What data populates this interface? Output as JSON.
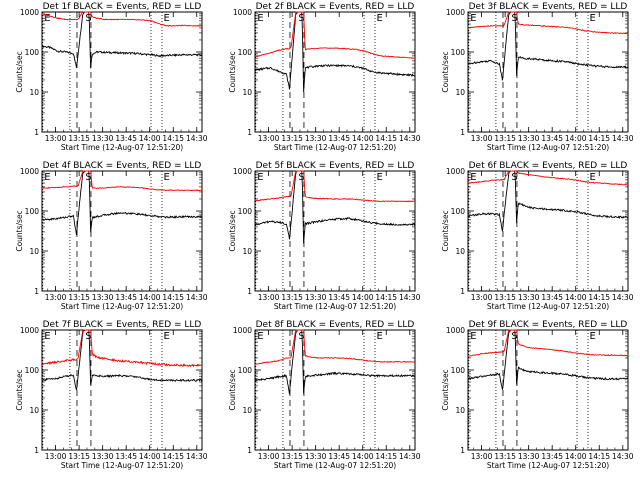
{
  "chart_data": {
    "type": "line",
    "yscale": "log",
    "ylim": [
      1,
      1000
    ],
    "ylabel": "Counts/sec",
    "xlabel": "Start Time (12-Aug-07 12:51:20)",
    "x_tick_labels": [
      "13:00",
      "13:15",
      "13:30",
      "13:45",
      "14:00",
      "14:15",
      "14:30"
    ],
    "y_tick_labels": [
      "1",
      "10",
      "100",
      "1000"
    ],
    "x_unit": "minutes after 12:51:20",
    "xlim": [
      0,
      102
    ],
    "x_ticks": [
      8.67,
      23.67,
      38.67,
      53.67,
      68.67,
      83.67,
      98.67
    ],
    "series_colors": {
      "events": "#000000",
      "lld": "#ff0000"
    },
    "markers": [
      {
        "label": "E",
        "x": 0.5,
        "style": "dotted"
      },
      {
        "label": "",
        "x": 17.8,
        "style": "dotted"
      },
      {
        "label": "",
        "x": 22.3,
        "style": "dashed"
      },
      {
        "label": "S",
        "x": 26.7,
        "style": "solid"
      },
      {
        "label": "",
        "x": 31.2,
        "style": "dashed"
      },
      {
        "label": "",
        "x": 69.5,
        "style": "dotted"
      },
      {
        "label": "E",
        "x": 76.5,
        "style": "dotted"
      }
    ],
    "panels": [
      {
        "title": "Det 1f BLACK = Events, RED = LLD",
        "series": [
          {
            "name": "Events",
            "x": [
              0,
              5,
              10,
              15,
              20,
              22,
              23,
              26,
              28,
              30,
              31,
              32,
              35,
              40,
              50,
              60,
              65,
              70,
              75,
              80,
              90,
              102
            ],
            "values": [
              140,
              130,
              105,
              100,
              92,
              40,
              90,
              900,
              1100,
              1000,
              40,
              90,
              100,
              98,
              95,
              92,
              88,
              85,
              80,
              82,
              85,
              85
            ]
          },
          {
            "name": "LLD",
            "x": [
              0,
              5,
              10,
              15,
              20,
              22,
              23,
              26,
              28,
              30,
              31,
              32,
              35,
              40,
              50,
              60,
              65,
              70,
              75,
              80,
              90,
              102
            ],
            "values": [
              900,
              800,
              700,
              650,
              650,
              650,
              650,
              1000,
              1100,
              1100,
              1000,
              750,
              700,
              650,
              650,
              640,
              630,
              600,
              500,
              450,
              460,
              450
            ]
          }
        ]
      },
      {
        "title": "Det 2f BLACK = Events, RED = LLD",
        "series": [
          {
            "name": "Events",
            "x": [
              0,
              5,
              10,
              15,
              20,
              22,
              23,
              26,
              28,
              30,
              31,
              32,
              35,
              40,
              50,
              60,
              65,
              70,
              75,
              80,
              90,
              102
            ],
            "values": [
              35,
              38,
              40,
              33,
              28,
              12,
              35,
              900,
              1100,
              1000,
              10,
              40,
              42,
              45,
              46,
              45,
              42,
              38,
              32,
              30,
              28,
              26
            ]
          },
          {
            "name": "LLD",
            "x": [
              0,
              5,
              10,
              15,
              20,
              22,
              23,
              26,
              28,
              30,
              31,
              32,
              35,
              40,
              50,
              60,
              65,
              70,
              75,
              80,
              90,
              102
            ],
            "values": [
              75,
              85,
              95,
              110,
              120,
              120,
              130,
              1000,
              1100,
              1100,
              1000,
              115,
              120,
              125,
              125,
              120,
              115,
              105,
              90,
              80,
              75,
              70
            ]
          }
        ]
      },
      {
        "title": "Det 3f BLACK = Events, RED = LLD",
        "series": [
          {
            "name": "Events",
            "x": [
              0,
              5,
              10,
              15,
              20,
              22,
              23,
              26,
              28,
              30,
              31,
              32,
              35,
              40,
              50,
              60,
              65,
              70,
              75,
              80,
              90,
              102
            ],
            "values": [
              50,
              55,
              58,
              60,
              50,
              20,
              55,
              900,
              1100,
              1000,
              25,
              75,
              70,
              68,
              62,
              58,
              55,
              50,
              48,
              45,
              42,
              42
            ]
          },
          {
            "name": "LLD",
            "x": [
              0,
              5,
              10,
              15,
              20,
              22,
              23,
              26,
              28,
              30,
              31,
              32,
              35,
              40,
              50,
              60,
              65,
              70,
              75,
              80,
              90,
              102
            ],
            "values": [
              400,
              420,
              440,
              450,
              450,
              450,
              460,
              1000,
              1100,
              1100,
              1000,
              500,
              480,
              470,
              440,
              420,
              400,
              370,
              340,
              320,
              300,
              290
            ]
          }
        ]
      },
      {
        "title": "Det 4f BLACK = Events, RED = LLD",
        "series": [
          {
            "name": "Events",
            "x": [
              0,
              5,
              10,
              15,
              20,
              22,
              23,
              26,
              28,
              30,
              31,
              32,
              35,
              40,
              50,
              60,
              65,
              70,
              75,
              80,
              90,
              102
            ],
            "values": [
              60,
              62,
              65,
              70,
              75,
              25,
              70,
              900,
              1100,
              1000,
              30,
              70,
              72,
              80,
              90,
              85,
              80,
              75,
              72,
              70,
              72,
              72
            ]
          },
          {
            "name": "LLD",
            "x": [
              0,
              5,
              10,
              15,
              20,
              22,
              23,
              26,
              28,
              30,
              31,
              32,
              35,
              40,
              50,
              60,
              65,
              70,
              75,
              80,
              90,
              102
            ],
            "values": [
              380,
              380,
              390,
              400,
              420,
              420,
              420,
              1000,
              1100,
              1100,
              1000,
              380,
              370,
              380,
              400,
              390,
              370,
              350,
              340,
              330,
              330,
              330
            ]
          }
        ]
      },
      {
        "title": "Det 5f BLACK = Events, RED = LLD",
        "series": [
          {
            "name": "Events",
            "x": [
              0,
              5,
              10,
              15,
              20,
              22,
              23,
              26,
              28,
              30,
              31,
              32,
              35,
              40,
              50,
              60,
              65,
              70,
              75,
              80,
              90,
              102
            ],
            "values": [
              45,
              50,
              55,
              52,
              48,
              20,
              50,
              900,
              1100,
              1000,
              15,
              48,
              50,
              55,
              62,
              65,
              60,
              55,
              50,
              48,
              46,
              46
            ]
          },
          {
            "name": "LLD",
            "x": [
              0,
              5,
              10,
              15,
              20,
              22,
              23,
              26,
              28,
              30,
              31,
              32,
              35,
              40,
              50,
              60,
              65,
              70,
              75,
              80,
              90,
              102
            ],
            "values": [
              180,
              190,
              200,
              210,
              230,
              230,
              240,
              1000,
              1100,
              1100,
              1000,
              230,
              215,
              205,
              200,
              200,
              195,
              185,
              180,
              175,
              175,
              175
            ]
          }
        ]
      },
      {
        "title": "Det 6f BLACK = Events, RED = LLD",
        "series": [
          {
            "name": "Events",
            "x": [
              0,
              5,
              10,
              15,
              20,
              22,
              23,
              26,
              28,
              30,
              31,
              32,
              35,
              40,
              50,
              60,
              65,
              70,
              75,
              80,
              90,
              102
            ],
            "values": [
              75,
              80,
              85,
              85,
              80,
              30,
              80,
              900,
              1100,
              1000,
              50,
              160,
              140,
              120,
              110,
              105,
              100,
              95,
              85,
              78,
              72,
              70
            ]
          },
          {
            "name": "LLD",
            "x": [
              0,
              5,
              10,
              15,
              20,
              22,
              23,
              26,
              28,
              30,
              31,
              32,
              35,
              40,
              50,
              60,
              65,
              70,
              75,
              80,
              90,
              102
            ],
            "values": [
              500,
              520,
              550,
              580,
              600,
              600,
              610,
              1000,
              1100,
              1100,
              1000,
              900,
              850,
              800,
              700,
              650,
              620,
              580,
              540,
              510,
              480,
              450
            ]
          }
        ]
      },
      {
        "title": "Det 7f BLACK = Events, RED = LLD",
        "series": [
          {
            "name": "Events",
            "x": [
              0,
              5,
              10,
              15,
              20,
              22,
              23,
              26,
              28,
              30,
              31,
              32,
              35,
              40,
              50,
              60,
              65,
              70,
              75,
              80,
              90,
              102
            ],
            "values": [
              55,
              60,
              62,
              70,
              75,
              30,
              70,
              900,
              1100,
              1000,
              40,
              75,
              72,
              70,
              72,
              68,
              62,
              58,
              56,
              55,
              55,
              55
            ]
          },
          {
            "name": "LLD",
            "x": [
              0,
              5,
              10,
              15,
              20,
              22,
              23,
              26,
              28,
              30,
              31,
              32,
              35,
              40,
              50,
              60,
              65,
              70,
              75,
              80,
              90,
              102
            ],
            "values": [
              140,
              150,
              160,
              170,
              180,
              180,
              190,
              1000,
              1100,
              1100,
              1000,
              250,
              210,
              190,
              170,
              160,
              150,
              145,
              140,
              135,
              130,
              130
            ]
          }
        ]
      },
      {
        "title": "Det 8f BLACK = Events, RED = LLD",
        "series": [
          {
            "name": "Events",
            "x": [
              0,
              5,
              10,
              15,
              20,
              22,
              23,
              26,
              28,
              30,
              31,
              32,
              35,
              40,
              50,
              60,
              65,
              70,
              75,
              80,
              90,
              102
            ],
            "values": [
              55,
              58,
              62,
              68,
              72,
              25,
              70,
              900,
              1100,
              1000,
              25,
              70,
              72,
              75,
              82,
              80,
              78,
              75,
              72,
              72,
              72,
              72
            ]
          },
          {
            "name": "LLD",
            "x": [
              0,
              5,
              10,
              15,
              20,
              22,
              23,
              26,
              28,
              30,
              31,
              32,
              35,
              40,
              50,
              60,
              65,
              70,
              75,
              80,
              90,
              102
            ],
            "values": [
              140,
              150,
              160,
              170,
              200,
              200,
              210,
              1000,
              1100,
              1100,
              1000,
              230,
              210,
              200,
              200,
              195,
              185,
              175,
              165,
              160,
              160,
              160
            ]
          }
        ]
      },
      {
        "title": "Det 9f BLACK = Events, RED = LLD",
        "series": [
          {
            "name": "Events",
            "x": [
              0,
              5,
              10,
              15,
              20,
              22,
              23,
              26,
              28,
              30,
              31,
              32,
              35,
              40,
              50,
              60,
              65,
              70,
              75,
              80,
              90,
              102
            ],
            "values": [
              60,
              65,
              70,
              75,
              80,
              30,
              75,
              900,
              1100,
              1000,
              40,
              120,
              100,
              90,
              85,
              80,
              75,
              70,
              65,
              62,
              60,
              60
            ]
          },
          {
            "name": "LLD",
            "x": [
              0,
              5,
              10,
              15,
              20,
              22,
              23,
              26,
              28,
              30,
              31,
              32,
              35,
              40,
              50,
              60,
              65,
              70,
              75,
              80,
              90,
              102
            ],
            "values": [
              220,
              240,
              260,
              270,
              280,
              280,
              290,
              1000,
              1100,
              1100,
              1000,
              450,
              400,
              360,
              330,
              300,
              280,
              260,
              250,
              240,
              235,
              230
            ]
          }
        ]
      }
    ]
  }
}
